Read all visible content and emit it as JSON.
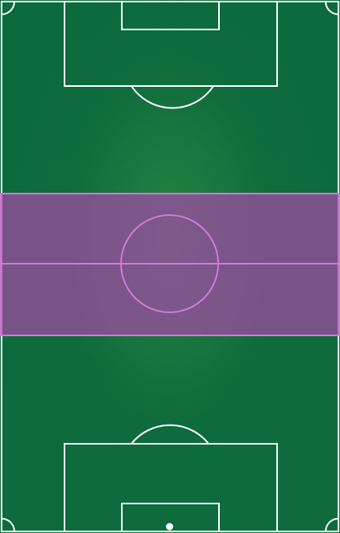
{
  "pitch": {
    "colors": {
      "turf": "#0d6b3c",
      "turf_highlight": "#2f8a42",
      "lines": "#ffffff",
      "highlight_fill": "#a24aa6",
      "highlight_stroke": "#d27ad8"
    },
    "highlight_zone": {
      "label": "",
      "selected": true
    },
    "elements": {
      "center_circle": "center-circle",
      "halfway_line": "halfway-line",
      "top_goal_area": "top-goal-area",
      "top_penalty_area": "top-penalty-area",
      "bottom_goal_area": "bottom-goal-area",
      "bottom_penalty_area": "bottom-penalty-area"
    }
  }
}
